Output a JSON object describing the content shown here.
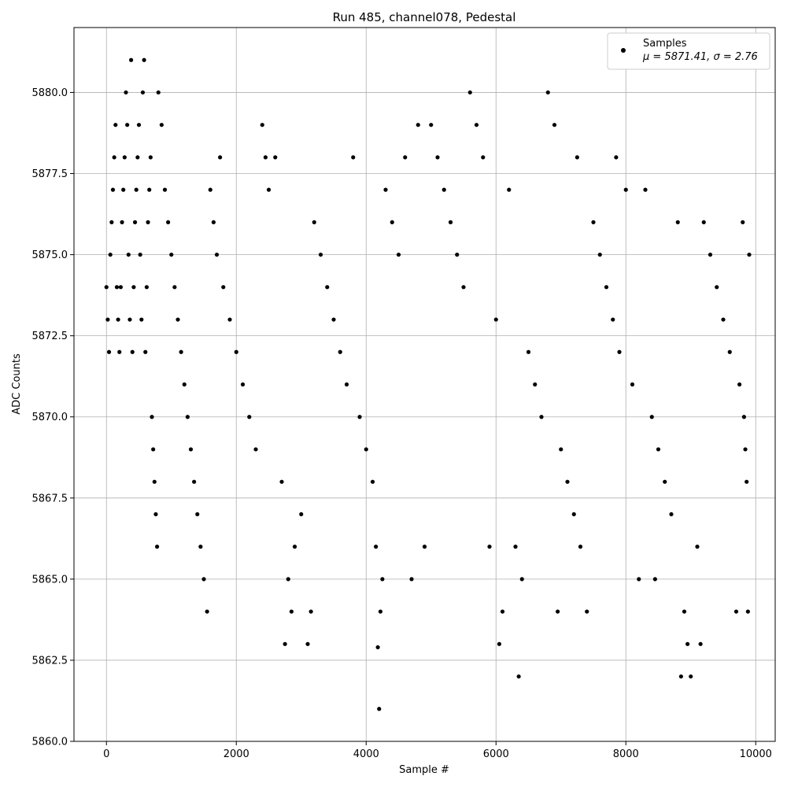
{
  "chart_data": {
    "type": "scatter",
    "title": "Run 485, channel078, Pedestal",
    "xlabel": "Sample #",
    "ylabel": "ADC Counts",
    "xlim": [
      -500,
      10300
    ],
    "ylim": [
      5860.0,
      5882.0
    ],
    "x_ticks": [
      0,
      2000,
      4000,
      6000,
      8000,
      10000
    ],
    "x_tick_labels": [
      "0",
      "2000",
      "4000",
      "6000",
      "8000",
      "10000"
    ],
    "y_ticks": [
      5860.0,
      5862.5,
      5865.0,
      5867.5,
      5870.0,
      5872.5,
      5875.0,
      5877.5,
      5880.0
    ],
    "y_tick_labels": [
      "5860.0",
      "5862.5",
      "5865.0",
      "5867.5",
      "5870.0",
      "5872.5",
      "5875.0",
      "5877.5",
      "5880.0"
    ],
    "grid": true,
    "legend": {
      "position": "top-right",
      "entries": [
        "Samples",
        "μ = 5871.41, σ = 2.76"
      ]
    },
    "marker_color": "#000000",
    "series": [
      {
        "name": "Samples",
        "points": [
          [
            0,
            5874
          ],
          [
            20,
            5873
          ],
          [
            40,
            5872
          ],
          [
            60,
            5875
          ],
          [
            80,
            5876
          ],
          [
            100,
            5877
          ],
          [
            120,
            5878
          ],
          [
            140,
            5879
          ],
          [
            160,
            5874
          ],
          [
            180,
            5873
          ],
          [
            200,
            5872
          ],
          [
            220,
            5874
          ],
          [
            240,
            5876
          ],
          [
            260,
            5877
          ],
          [
            280,
            5878
          ],
          [
            300,
            5880
          ],
          [
            320,
            5879
          ],
          [
            340,
            5875
          ],
          [
            360,
            5873
          ],
          [
            380,
            5881
          ],
          [
            400,
            5872
          ],
          [
            420,
            5874
          ],
          [
            440,
            5876
          ],
          [
            460,
            5877
          ],
          [
            480,
            5878
          ],
          [
            500,
            5879
          ],
          [
            520,
            5875
          ],
          [
            540,
            5873
          ],
          [
            560,
            5880
          ],
          [
            580,
            5881
          ],
          [
            600,
            5872
          ],
          [
            620,
            5874
          ],
          [
            640,
            5876
          ],
          [
            660,
            5877
          ],
          [
            680,
            5878
          ],
          [
            700,
            5870
          ],
          [
            720,
            5869
          ],
          [
            740,
            5868
          ],
          [
            760,
            5867
          ],
          [
            780,
            5866
          ],
          [
            800,
            5880
          ],
          [
            850,
            5879
          ],
          [
            900,
            5877
          ],
          [
            950,
            5876
          ],
          [
            1000,
            5875
          ],
          [
            1050,
            5874
          ],
          [
            1100,
            5873
          ],
          [
            1150,
            5872
          ],
          [
            1200,
            5871
          ],
          [
            1250,
            5870
          ],
          [
            1300,
            5869
          ],
          [
            1350,
            5868
          ],
          [
            1400,
            5867
          ],
          [
            1450,
            5866
          ],
          [
            1500,
            5865
          ],
          [
            1550,
            5864
          ],
          [
            1600,
            5877
          ],
          [
            1650,
            5876
          ],
          [
            1700,
            5875
          ],
          [
            1750,
            5878
          ],
          [
            1800,
            5874
          ],
          [
            1900,
            5873
          ],
          [
            2000,
            5872
          ],
          [
            2100,
            5871
          ],
          [
            2200,
            5870
          ],
          [
            2300,
            5869
          ],
          [
            2400,
            5879
          ],
          [
            2450,
            5878
          ],
          [
            2500,
            5877
          ],
          [
            2600,
            5878
          ],
          [
            2700,
            5868
          ],
          [
            2750,
            5863
          ],
          [
            2800,
            5865
          ],
          [
            2850,
            5864
          ],
          [
            2900,
            5866
          ],
          [
            3000,
            5867
          ],
          [
            3100,
            5863
          ],
          [
            3150,
            5864
          ],
          [
            3200,
            5876
          ],
          [
            3300,
            5875
          ],
          [
            3400,
            5874
          ],
          [
            3500,
            5873
          ],
          [
            3600,
            5872
          ],
          [
            3700,
            5871
          ],
          [
            3800,
            5878
          ],
          [
            3900,
            5870
          ],
          [
            4000,
            5869
          ],
          [
            4100,
            5868
          ],
          [
            4150,
            5866
          ],
          [
            4180,
            5862.9
          ],
          [
            4200,
            5861
          ],
          [
            4220,
            5864
          ],
          [
            4250,
            5865
          ],
          [
            4300,
            5877
          ],
          [
            4400,
            5876
          ],
          [
            4500,
            5875
          ],
          [
            4600,
            5878
          ],
          [
            4700,
            5865
          ],
          [
            4800,
            5879
          ],
          [
            4900,
            5866
          ],
          [
            5000,
            5879
          ],
          [
            5100,
            5878
          ],
          [
            5200,
            5877
          ],
          [
            5300,
            5876
          ],
          [
            5400,
            5875
          ],
          [
            5500,
            5874
          ],
          [
            5600,
            5880
          ],
          [
            5700,
            5879
          ],
          [
            5800,
            5878
          ],
          [
            5900,
            5866
          ],
          [
            6000,
            5873
          ],
          [
            6050,
            5863
          ],
          [
            6100,
            5864
          ],
          [
            6200,
            5877
          ],
          [
            6300,
            5866
          ],
          [
            6350,
            5862
          ],
          [
            6400,
            5865
          ],
          [
            6500,
            5872
          ],
          [
            6600,
            5871
          ],
          [
            6700,
            5870
          ],
          [
            6800,
            5880
          ],
          [
            6900,
            5879
          ],
          [
            6950,
            5864
          ],
          [
            7000,
            5869
          ],
          [
            7100,
            5868
          ],
          [
            7200,
            5867
          ],
          [
            7250,
            5878
          ],
          [
            7300,
            5866
          ],
          [
            7400,
            5864
          ],
          [
            7500,
            5876
          ],
          [
            7600,
            5875
          ],
          [
            7700,
            5874
          ],
          [
            7800,
            5873
          ],
          [
            7850,
            5878
          ],
          [
            7900,
            5872
          ],
          [
            8000,
            5877
          ],
          [
            8100,
            5871
          ],
          [
            8200,
            5865
          ],
          [
            8300,
            5877
          ],
          [
            8400,
            5870
          ],
          [
            8450,
            5865
          ],
          [
            8500,
            5869
          ],
          [
            8600,
            5868
          ],
          [
            8700,
            5867
          ],
          [
            8800,
            5876
          ],
          [
            8850,
            5862
          ],
          [
            8900,
            5864
          ],
          [
            8950,
            5863
          ],
          [
            9000,
            5862
          ],
          [
            9100,
            5866
          ],
          [
            9150,
            5863
          ],
          [
            9200,
            5876
          ],
          [
            9300,
            5875
          ],
          [
            9400,
            5874
          ],
          [
            9500,
            5873
          ],
          [
            9600,
            5872
          ],
          [
            9700,
            5864
          ],
          [
            9750,
            5871
          ],
          [
            9800,
            5876
          ],
          [
            9820,
            5870
          ],
          [
            9840,
            5869
          ],
          [
            9860,
            5868
          ],
          [
            9880,
            5864
          ],
          [
            9900,
            5875
          ]
        ]
      }
    ]
  }
}
